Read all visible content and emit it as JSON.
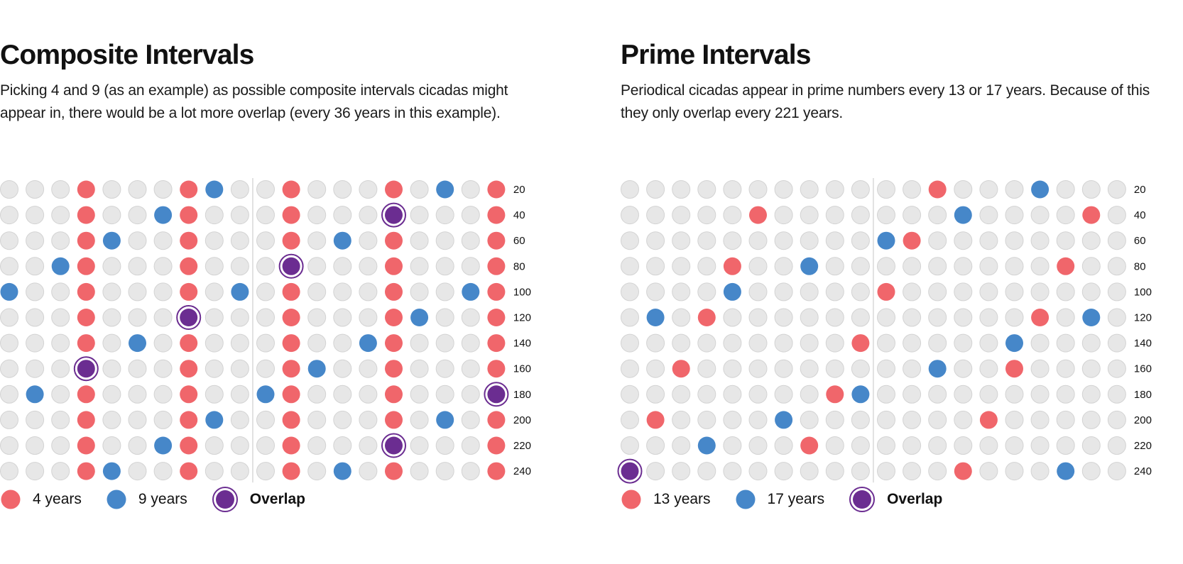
{
  "colors": {
    "empty": "#e7e7e7",
    "empty_stroke": "#d3d3d3",
    "first": "#f0666b",
    "second": "#4687c9",
    "overlap": "#6b2d91",
    "divider": "#d9d9d9"
  },
  "panels": [
    {
      "title": "Composite Intervals",
      "description": "Picking 4 and 9 (as an example) as possible composite intervals cicadas might appear in, there would be a lot more overlap (every 36 years in this example).",
      "intervals": [
        4,
        9
      ],
      "years_total": 240,
      "columns": 20,
      "row_labels": [
        "20",
        "40",
        "60",
        "80",
        "100",
        "120",
        "140",
        "160",
        "180",
        "200",
        "220",
        "240"
      ],
      "legend": {
        "first": "4 years",
        "second": "9 years",
        "overlap": "Overlap"
      }
    },
    {
      "title": "Prime Intervals",
      "description": "Periodical cicadas appear in prime numbers every 13 or 17 years. Because of this they only overlap every 221 years.",
      "intervals": [
        13,
        17
      ],
      "years_total": 240,
      "columns": 20,
      "row_labels": [
        "20",
        "40",
        "60",
        "80",
        "100",
        "120",
        "140",
        "160",
        "180",
        "200",
        "220",
        "240"
      ],
      "legend": {
        "first": "13 years",
        "second": "17 years",
        "overlap": "Overlap"
      }
    }
  ]
}
